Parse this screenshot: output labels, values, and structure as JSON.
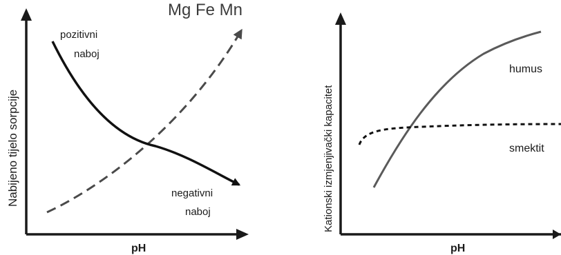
{
  "watermark": "Mg Fe Mn",
  "left": {
    "ylabel": "Nabijeno tijelo sorpcije",
    "xlabel": "pH",
    "positive_label": [
      "pozitivni",
      "naboj"
    ],
    "negative_label": [
      "negativni",
      "naboj"
    ]
  },
  "right": {
    "ylabel": "Kationski izmjenjivački kapacitet",
    "xlabel": "pH",
    "humus_label": "humus",
    "smektit_label": "smektit"
  },
  "colors": {
    "axis": "#1a1a1a",
    "solid_curve": "#111111",
    "dashed_curve_left": "#4a4a4a",
    "humus_curve": "#5a5a5a",
    "smektit_curve": "#111111",
    "watermark": "#cccccc"
  }
}
